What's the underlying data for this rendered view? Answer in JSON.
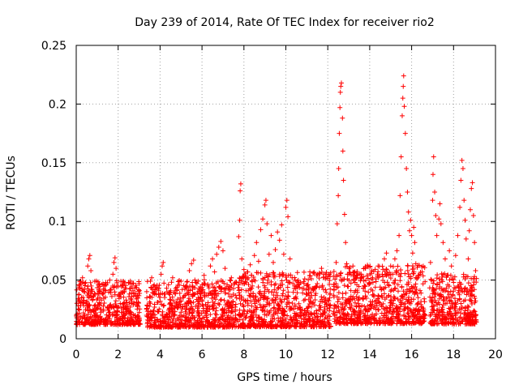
{
  "chart_data": {
    "type": "scatter",
    "title": "Day 239 of 2014, Rate Of TEC Index for receiver rio2",
    "xlabel": "GPS time / hours",
    "ylabel": "ROTI / TECUs",
    "xlim": [
      0,
      20
    ],
    "ylim": [
      0,
      0.25
    ],
    "grid": true,
    "marker": "+",
    "color": "#ff0000",
    "x_ticks": [
      0,
      2,
      4,
      6,
      8,
      10,
      12,
      14,
      16,
      18,
      20
    ],
    "y_ticks": [
      0,
      0.05,
      0.1,
      0.15,
      0.2,
      0.25
    ],
    "x_tick_labels": [
      "0",
      "2",
      "4",
      "6",
      "8",
      "10",
      "12",
      "14",
      "16",
      "18",
      "20"
    ],
    "y_tick_labels": [
      "0",
      "0.05",
      "0.1",
      "0.15",
      "0.2",
      "0.25"
    ],
    "series": [
      {
        "name": "ROTI",
        "points": [
          [
            0.05,
            0.012
          ],
          [
            0.1,
            0.028
          ],
          [
            0.15,
            0.045
          ],
          [
            0.2,
            0.018
          ],
          [
            0.25,
            0.035
          ],
          [
            0.3,
            0.052
          ],
          [
            0.35,
            0.022
          ],
          [
            0.4,
            0.04
          ],
          [
            0.45,
            0.015
          ],
          [
            0.5,
            0.031
          ],
          [
            0.55,
            0.062
          ],
          [
            0.6,
            0.068
          ],
          [
            0.65,
            0.071
          ],
          [
            0.7,
            0.058
          ],
          [
            0.75,
            0.042
          ],
          [
            0.8,
            0.025
          ],
          [
            0.9,
            0.038
          ],
          [
            1.0,
            0.02
          ],
          [
            1.1,
            0.047
          ],
          [
            1.2,
            0.033
          ],
          [
            1.3,
            0.016
          ],
          [
            1.4,
            0.041
          ],
          [
            1.5,
            0.027
          ],
          [
            1.6,
            0.05
          ],
          [
            1.7,
            0.036
          ],
          [
            1.75,
            0.055
          ],
          [
            1.8,
            0.065
          ],
          [
            1.85,
            0.069
          ],
          [
            1.9,
            0.06
          ],
          [
            2.0,
            0.045
          ],
          [
            2.1,
            0.03
          ],
          [
            2.2,
            0.019
          ],
          [
            2.3,
            0.04
          ],
          [
            2.4,
            0.026
          ],
          [
            2.5,
            0.048
          ],
          [
            2.6,
            0.034
          ],
          [
            2.7,
            0.013
          ],
          [
            2.8,
            0.043
          ],
          [
            2.9,
            0.029
          ],
          [
            3.0,
            0.047
          ],
          [
            3.4,
            0.016
          ],
          [
            3.5,
            0.036
          ],
          [
            3.6,
            0.052
          ],
          [
            3.7,
            0.024
          ],
          [
            3.8,
            0.044
          ],
          [
            3.9,
            0.031
          ],
          [
            4.0,
            0.015
          ],
          [
            4.05,
            0.055
          ],
          [
            4.1,
            0.062
          ],
          [
            4.15,
            0.065
          ],
          [
            4.2,
            0.038
          ],
          [
            4.3,
            0.021
          ],
          [
            4.4,
            0.046
          ],
          [
            4.5,
            0.033
          ],
          [
            4.6,
            0.052
          ],
          [
            4.7,
            0.027
          ],
          [
            4.8,
            0.041
          ],
          [
            4.9,
            0.018
          ],
          [
            5.0,
            0.049
          ],
          [
            5.1,
            0.035
          ],
          [
            5.2,
            0.023
          ],
          [
            5.3,
            0.044
          ],
          [
            5.4,
            0.058
          ],
          [
            5.5,
            0.064
          ],
          [
            5.6,
            0.067
          ],
          [
            5.7,
            0.048
          ],
          [
            5.8,
            0.032
          ],
          [
            5.9,
            0.017
          ],
          [
            6.0,
            0.04
          ],
          [
            6.1,
            0.054
          ],
          [
            6.2,
            0.026
          ],
          [
            6.3,
            0.045
          ],
          [
            6.4,
            0.062
          ],
          [
            6.5,
            0.068
          ],
          [
            6.6,
            0.057
          ],
          [
            6.7,
            0.072
          ],
          [
            6.8,
            0.078
          ],
          [
            6.9,
            0.083
          ],
          [
            7.0,
            0.075
          ],
          [
            7.1,
            0.06
          ],
          [
            7.2,
            0.046
          ],
          [
            7.3,
            0.031
          ],
          [
            7.4,
            0.052
          ],
          [
            7.5,
            0.038
          ],
          [
            7.6,
            0.02
          ],
          [
            7.75,
            0.087
          ],
          [
            7.8,
            0.101
          ],
          [
            7.82,
            0.126
          ],
          [
            7.85,
            0.132
          ],
          [
            7.9,
            0.068
          ],
          [
            8.0,
            0.059
          ],
          [
            8.1,
            0.041
          ],
          [
            8.2,
            0.052
          ],
          [
            8.3,
            0.063
          ],
          [
            8.4,
            0.045
          ],
          [
            8.5,
            0.071
          ],
          [
            8.6,
            0.082
          ],
          [
            8.7,
            0.066
          ],
          [
            8.8,
            0.093
          ],
          [
            8.9,
            0.102
          ],
          [
            9.0,
            0.114
          ],
          [
            9.05,
            0.118
          ],
          [
            9.1,
            0.098
          ],
          [
            9.2,
            0.072
          ],
          [
            9.3,
            0.088
          ],
          [
            9.4,
            0.065
          ],
          [
            9.5,
            0.076
          ],
          [
            9.6,
            0.091
          ],
          [
            9.7,
            0.084
          ],
          [
            9.8,
            0.097
          ],
          [
            9.9,
            0.072
          ],
          [
            10.0,
            0.112
          ],
          [
            10.05,
            0.118
          ],
          [
            10.1,
            0.104
          ],
          [
            10.2,
            0.068
          ],
          [
            10.3,
            0.052
          ],
          [
            10.4,
            0.043
          ],
          [
            10.5,
            0.034
          ],
          [
            10.6,
            0.048
          ],
          [
            10.7,
            0.025
          ],
          [
            10.8,
            0.039
          ],
          [
            10.9,
            0.051
          ],
          [
            11.0,
            0.022
          ],
          [
            11.1,
            0.044
          ],
          [
            11.2,
            0.031
          ],
          [
            11.3,
            0.056
          ],
          [
            11.4,
            0.037
          ],
          [
            11.5,
            0.047
          ],
          [
            11.6,
            0.028
          ],
          [
            11.7,
            0.06
          ],
          [
            11.8,
            0.042
          ],
          [
            11.9,
            0.055
          ],
          [
            12.0,
            0.033
          ],
          [
            12.1,
            0.019
          ],
          [
            12.3,
            0.042
          ],
          [
            12.4,
            0.065
          ],
          [
            12.45,
            0.098
          ],
          [
            12.5,
            0.122
          ],
          [
            12.52,
            0.145
          ],
          [
            12.55,
            0.175
          ],
          [
            12.58,
            0.197
          ],
          [
            12.6,
            0.21
          ],
          [
            12.62,
            0.215
          ],
          [
            12.65,
            0.218
          ],
          [
            12.7,
            0.188
          ],
          [
            12.72,
            0.16
          ],
          [
            12.75,
            0.135
          ],
          [
            12.8,
            0.106
          ],
          [
            12.85,
            0.082
          ],
          [
            12.9,
            0.064
          ],
          [
            13.0,
            0.055
          ],
          [
            13.1,
            0.041
          ],
          [
            13.2,
            0.062
          ],
          [
            13.3,
            0.048
          ],
          [
            13.4,
            0.056
          ],
          [
            13.5,
            0.035
          ],
          [
            13.6,
            0.052
          ],
          [
            13.7,
            0.043
          ],
          [
            13.8,
            0.06
          ],
          [
            13.9,
            0.028
          ],
          [
            14.0,
            0.047
          ],
          [
            14.1,
            0.058
          ],
          [
            14.2,
            0.036
          ],
          [
            14.3,
            0.051
          ],
          [
            14.4,
            0.062
          ],
          [
            14.5,
            0.044
          ],
          [
            14.6,
            0.055
          ],
          [
            14.7,
            0.068
          ],
          [
            14.8,
            0.073
          ],
          [
            14.9,
            0.046
          ],
          [
            15.0,
            0.062
          ],
          [
            15.1,
            0.055
          ],
          [
            15.2,
            0.068
          ],
          [
            15.3,
            0.075
          ],
          [
            15.4,
            0.088
          ],
          [
            15.45,
            0.122
          ],
          [
            15.5,
            0.155
          ],
          [
            15.55,
            0.19
          ],
          [
            15.58,
            0.205
          ],
          [
            15.6,
            0.215
          ],
          [
            15.62,
            0.224
          ],
          [
            15.65,
            0.198
          ],
          [
            15.7,
            0.175
          ],
          [
            15.75,
            0.145
          ],
          [
            15.8,
            0.125
          ],
          [
            15.85,
            0.108
          ],
          [
            15.9,
            0.092
          ],
          [
            15.95,
            0.101
          ],
          [
            16.0,
            0.088
          ],
          [
            16.05,
            0.073
          ],
          [
            16.1,
            0.095
          ],
          [
            16.15,
            0.082
          ],
          [
            16.2,
            0.064
          ],
          [
            16.3,
            0.052
          ],
          [
            16.4,
            0.041
          ],
          [
            16.5,
            0.057
          ],
          [
            16.6,
            0.034
          ],
          [
            16.9,
            0.065
          ],
          [
            17.0,
            0.118
          ],
          [
            17.02,
            0.14
          ],
          [
            17.05,
            0.155
          ],
          [
            17.1,
            0.125
          ],
          [
            17.15,
            0.105
          ],
          [
            17.2,
            0.088
          ],
          [
            17.3,
            0.102
          ],
          [
            17.35,
            0.115
          ],
          [
            17.4,
            0.098
          ],
          [
            17.5,
            0.082
          ],
          [
            17.6,
            0.068
          ],
          [
            17.7,
            0.054
          ],
          [
            17.8,
            0.075
          ],
          [
            17.9,
            0.062
          ],
          [
            18.0,
            0.048
          ],
          [
            18.1,
            0.071
          ],
          [
            18.2,
            0.088
          ],
          [
            18.3,
            0.112
          ],
          [
            18.35,
            0.135
          ],
          [
            18.4,
            0.152
          ],
          [
            18.45,
            0.145
          ],
          [
            18.5,
            0.118
          ],
          [
            18.55,
            0.101
          ],
          [
            18.6,
            0.085
          ],
          [
            18.7,
            0.068
          ],
          [
            18.75,
            0.092
          ],
          [
            18.8,
            0.11
          ],
          [
            18.85,
            0.128
          ],
          [
            18.9,
            0.133
          ],
          [
            18.95,
            0.105
          ],
          [
            19.0,
            0.082
          ],
          [
            19.05,
            0.058
          ]
        ],
        "segments": [
          {
            "start": 0.0,
            "end": 3.05,
            "base": 0.028,
            "spread": 0.024
          },
          {
            "start": 3.35,
            "end": 7.65,
            "base": 0.027,
            "spread": 0.026
          },
          {
            "start": 7.7,
            "end": 12.15,
            "base": 0.03,
            "spread": 0.03
          },
          {
            "start": 12.25,
            "end": 16.65,
            "base": 0.034,
            "spread": 0.032
          },
          {
            "start": 16.85,
            "end": 19.1,
            "base": 0.031,
            "spread": 0.028
          }
        ]
      }
    ]
  }
}
